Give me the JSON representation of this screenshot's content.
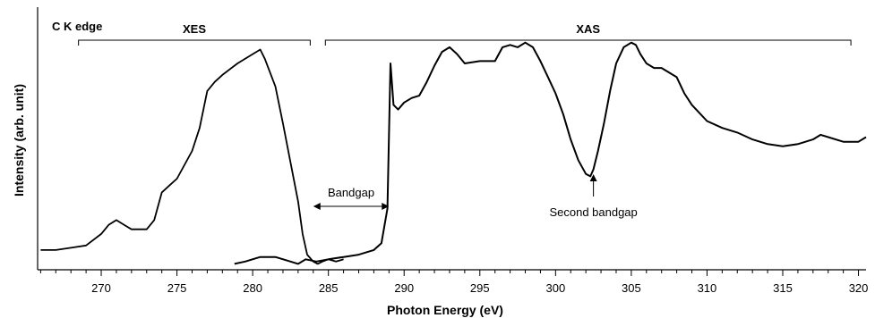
{
  "chart_data": {
    "type": "line",
    "title": "C K edge",
    "xlabel": "Photon Energy (eV)",
    "ylabel": "Intensity (arb. unit)",
    "xlim": [
      265.8,
      320.5
    ],
    "ylim": [
      0,
      1.0
    ],
    "x_ticks": [
      270,
      275,
      280,
      285,
      290,
      295,
      300,
      305,
      310,
      315,
      320
    ],
    "grid": false,
    "series": [
      {
        "name": "XES",
        "x": [
          266.0,
          267.0,
          268.0,
          269.0,
          270.0,
          270.5,
          271.0,
          271.5,
          272.0,
          273.0,
          273.5,
          274.0,
          274.5,
          275.0,
          276.0,
          276.5,
          277.0,
          277.5,
          278.0,
          279.0,
          280.0,
          280.5,
          280.8,
          281.5,
          282.0,
          282.5,
          283.0,
          283.3,
          283.6,
          284.0,
          284.3,
          284.6,
          285.0,
          285.5,
          286.0
        ],
        "y": [
          0.07,
          0.07,
          0.08,
          0.09,
          0.14,
          0.18,
          0.2,
          0.18,
          0.16,
          0.16,
          0.2,
          0.32,
          0.35,
          0.38,
          0.5,
          0.6,
          0.76,
          0.8,
          0.83,
          0.88,
          0.92,
          0.94,
          0.9,
          0.78,
          0.62,
          0.45,
          0.28,
          0.14,
          0.05,
          0.02,
          0.01,
          0.02,
          0.03,
          0.02,
          0.03
        ]
      },
      {
        "name": "XAS",
        "x": [
          278.8,
          279.5,
          280.5,
          281.5,
          282.5,
          283.0,
          283.5,
          284.2,
          285.0,
          286.0,
          287.0,
          288.0,
          288.5,
          288.9,
          289.1,
          289.3,
          289.6,
          290.0,
          290.5,
          291.0,
          291.5,
          292.0,
          292.5,
          293.0,
          293.5,
          294.0,
          295.0,
          296.0,
          296.5,
          297.0,
          297.5,
          298.0,
          298.5,
          299.0,
          299.5,
          300.0,
          300.5,
          301.0,
          301.5,
          302.0,
          302.3,
          302.5,
          302.8,
          303.2,
          303.6,
          304.0,
          304.5,
          305.0,
          305.3,
          305.6,
          306.0,
          306.5,
          307.0,
          308.0,
          308.5,
          309.0,
          310.0,
          311.0,
          312.0,
          313.0,
          314.0,
          315.0,
          316.0,
          317.0,
          317.5,
          318.0,
          319.0,
          320.0,
          320.5
        ],
        "y": [
          0.01,
          0.02,
          0.04,
          0.04,
          0.02,
          0.01,
          0.03,
          0.02,
          0.03,
          0.04,
          0.05,
          0.07,
          0.1,
          0.25,
          0.88,
          0.7,
          0.68,
          0.71,
          0.73,
          0.74,
          0.8,
          0.87,
          0.93,
          0.95,
          0.92,
          0.88,
          0.89,
          0.89,
          0.95,
          0.96,
          0.95,
          0.97,
          0.95,
          0.89,
          0.82,
          0.75,
          0.66,
          0.55,
          0.46,
          0.4,
          0.39,
          0.42,
          0.5,
          0.62,
          0.76,
          0.88,
          0.95,
          0.97,
          0.96,
          0.92,
          0.88,
          0.86,
          0.86,
          0.82,
          0.75,
          0.7,
          0.63,
          0.6,
          0.58,
          0.55,
          0.53,
          0.52,
          0.53,
          0.55,
          0.57,
          0.56,
          0.54,
          0.54,
          0.56
        ]
      }
    ],
    "annotations": {
      "xes_label": "XES",
      "xas_label": "XAS",
      "bandgap_label": "Bandgap",
      "second_bandgap_label": "Second bandgap",
      "xes_bracket_x": [
        268.5,
        283.8
      ],
      "xas_bracket_x": [
        284.8,
        319.5
      ],
      "bandgap_arrow_x": [
        284.0,
        289.0
      ],
      "second_bandgap_arrow_x": 302.5
    }
  }
}
